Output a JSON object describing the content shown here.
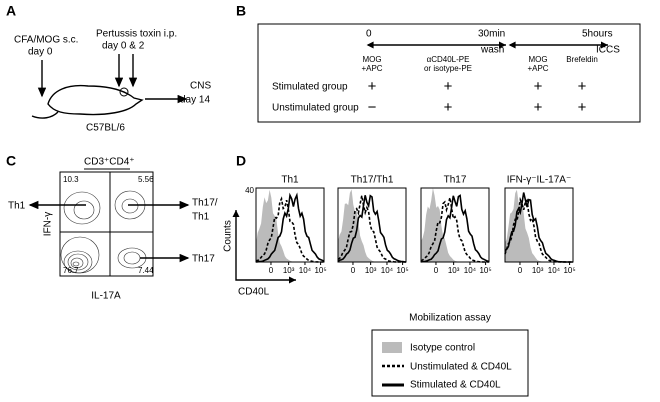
{
  "panel_a": {
    "label": "A",
    "injection_1": [
      "CFA/MOG s.c.",
      "day 0"
    ],
    "injection_2": [
      "Pertussis toxin i.p.",
      "day 0 & 2"
    ],
    "mouse": "C57BL/6",
    "target": [
      "CNS",
      "day 14"
    ]
  },
  "panel_b": {
    "label": "B",
    "timeline": {
      "start": "0",
      "middle": "30min",
      "end": "5hours",
      "middle_step": "wash",
      "end_step": "ICCS"
    },
    "columns": [
      [
        "MOG",
        "+APC"
      ],
      [
        "αCD40L-PE",
        "or isotype-PE"
      ],
      [
        "MOG",
        "+APC"
      ],
      [
        "Brefeldin"
      ]
    ],
    "rows": [
      {
        "name": "Stimulated group",
        "marks": [
          "+",
          "+",
          "+",
          "+"
        ]
      },
      {
        "name": "Unstimulated group",
        "marks": [
          "−",
          "+",
          "+",
          "+"
        ]
      }
    ]
  },
  "panel_c": {
    "label": "C",
    "title": "CD3⁺CD4⁺",
    "y_axis": "IFN-γ",
    "x_axis": "IL-17A",
    "quadrants": {
      "top_left": "10.3",
      "top_right": "5.56",
      "bottom_left": "76.7",
      "bottom_right": "7.44"
    },
    "gates": [
      [
        "Th1"
      ],
      [
        "Th17/",
        "Th1"
      ],
      [
        "Th17"
      ]
    ]
  },
  "panel_d": {
    "label": "D",
    "y_axis": "Counts",
    "x_axis": "CD40L",
    "y_tick": "40",
    "x_ticks": [
      "0",
      "10³",
      "10⁴",
      "10⁵"
    ],
    "plots": [
      "Th1",
      "Th17/Th1",
      "Th17",
      "IFN-γ⁻IL-17A⁻"
    ]
  },
  "legend": {
    "title": "Mobilization assay",
    "items": [
      "Isotype control",
      "Unstimulated & CD40L",
      "Stimulated & CD40L"
    ]
  }
}
